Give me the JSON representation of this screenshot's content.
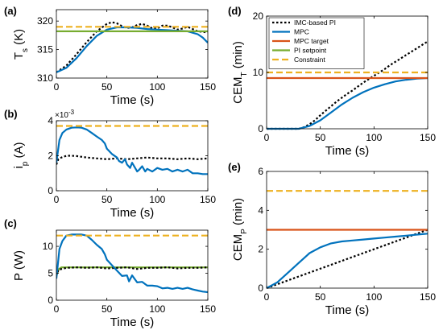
{
  "chart_data": [
    {
      "panel": "(a)",
      "type": "line",
      "xlabel": "Time (s)",
      "ylabel": "T",
      "ylabel_sub": "s",
      "ylabel_unit": " (K)",
      "xlim": [
        0,
        150
      ],
      "ylim": [
        310,
        322
      ],
      "xticks": [
        0,
        50,
        100,
        150
      ],
      "yticks": [
        310,
        315,
        320
      ],
      "series": [
        {
          "key": "imc",
          "x": [
            0,
            10,
            20,
            30,
            40,
            50,
            55,
            60,
            65,
            70,
            75,
            80,
            85,
            90,
            95,
            100,
            105,
            110,
            115,
            120,
            125,
            130,
            135,
            140,
            145,
            150
          ],
          "y": [
            311,
            312.2,
            314.2,
            316.3,
            318.2,
            319.5,
            319.8,
            319.6,
            319.1,
            318.8,
            318.9,
            319.3,
            319.5,
            319.2,
            318.7,
            318.7,
            319.2,
            319.2,
            318.9,
            318.5,
            318.7,
            319.0,
            318.6,
            318.2,
            318.1,
            318.0
          ]
        },
        {
          "key": "mpc",
          "x": [
            0,
            10,
            20,
            30,
            40,
            50,
            60,
            70,
            80,
            90,
            100,
            110,
            120,
            130,
            140,
            145,
            150
          ],
          "y": [
            311,
            311.8,
            313.5,
            315.6,
            317.4,
            318.5,
            318.9,
            318.9,
            318.8,
            318.6,
            318.5,
            318.4,
            318.3,
            318.2,
            317.7,
            317.1,
            316.2
          ]
        },
        {
          "key": "pi_setpoint",
          "x": [
            0,
            150
          ],
          "y": [
            318.2,
            318.2
          ]
        },
        {
          "key": "constraint",
          "x": [
            0,
            150
          ],
          "y": [
            319,
            319
          ]
        }
      ]
    },
    {
      "panel": "(b)",
      "type": "line",
      "xlabel": "Time (s)",
      "ylabel": "i",
      "ylabel_sub": "p",
      "ylabel_unit": " (A)",
      "exponent_label": "×10",
      "exponent_power": "-3",
      "xlim": [
        0,
        150
      ],
      "ylim": [
        0,
        4
      ],
      "xticks": [
        0,
        50,
        100,
        150
      ],
      "yticks": [
        0,
        2,
        4
      ],
      "series": [
        {
          "key": "imc",
          "x": [
            0,
            2,
            5,
            10,
            15,
            20,
            30,
            40,
            50,
            60,
            70,
            80,
            90,
            100,
            110,
            120,
            130,
            140,
            150
          ],
          "y": [
            1.5,
            1.8,
            1.9,
            2.0,
            2.0,
            1.98,
            1.9,
            1.85,
            1.8,
            1.85,
            1.8,
            1.85,
            1.9,
            1.85,
            1.85,
            1.8,
            1.85,
            1.8,
            1.85
          ]
        },
        {
          "key": "mpc",
          "x": [
            0,
            3,
            6,
            10,
            15,
            20,
            25,
            30,
            35,
            40,
            45,
            48,
            50,
            55,
            60,
            62,
            65,
            68,
            70,
            73,
            75,
            78,
            80,
            82,
            85,
            88,
            90,
            95,
            100,
            105,
            110,
            115,
            120,
            125,
            130,
            135,
            140,
            145,
            150
          ],
          "y": [
            1.6,
            2.9,
            3.3,
            3.5,
            3.6,
            3.62,
            3.6,
            3.5,
            3.3,
            3.1,
            2.9,
            2.7,
            2.4,
            2.1,
            1.9,
            1.7,
            1.6,
            1.8,
            1.5,
            1.3,
            1.6,
            1.3,
            1.1,
            1.2,
            1.4,
            1.1,
            1.25,
            1.1,
            1.3,
            1.2,
            1.25,
            1.1,
            1.2,
            1.1,
            1.2,
            1.0,
            1.0,
            0.95,
            0.95
          ]
        },
        {
          "key": "constraint",
          "x": [
            0,
            150
          ],
          "y": [
            3.7,
            3.7
          ]
        }
      ]
    },
    {
      "panel": "(c)",
      "type": "line",
      "xlabel": "Time (s)",
      "ylabel": "P (W)",
      "xlim": [
        0,
        150
      ],
      "ylim": [
        0,
        13
      ],
      "xticks": [
        0,
        50,
        100,
        150
      ],
      "yticks": [
        0,
        5,
        10
      ],
      "series": [
        {
          "key": "mpc_green",
          "x": [
            0,
            2,
            5,
            150
          ],
          "y": [
            4.5,
            5.7,
            6.1,
            6.1
          ]
        },
        {
          "key": "imc",
          "x": [
            0,
            2,
            5,
            10,
            20,
            30,
            40,
            50,
            60,
            70,
            80,
            90,
            100,
            110,
            120,
            130,
            140,
            150
          ],
          "y": [
            4.5,
            5.6,
            5.8,
            6.0,
            6.1,
            6.0,
            6.1,
            5.9,
            6.0,
            6.1,
            5.8,
            6.0,
            6.0,
            6.1,
            5.9,
            6.0,
            6.0,
            6.1
          ]
        },
        {
          "key": "mpc",
          "x": [
            0,
            3,
            6,
            10,
            15,
            20,
            25,
            30,
            35,
            40,
            45,
            48,
            50,
            55,
            60,
            65,
            70,
            72,
            75,
            80,
            85,
            90,
            95,
            100,
            105,
            110,
            115,
            120,
            125,
            130,
            135,
            140,
            145,
            150
          ],
          "y": [
            4.0,
            9.5,
            11,
            12,
            12.2,
            12.2,
            12.2,
            12.0,
            11.2,
            10.3,
            9.5,
            8.5,
            7.5,
            6.5,
            5.5,
            4.5,
            4.6,
            3.5,
            4.6,
            3.3,
            3.4,
            2.7,
            2.7,
            2.6,
            2.2,
            2.3,
            2.1,
            2.3,
            2.1,
            2.3,
            2.0,
            1.8,
            1.6,
            1.5
          ]
        },
        {
          "key": "constraint",
          "x": [
            0,
            150
          ],
          "y": [
            12,
            12
          ]
        }
      ]
    },
    {
      "panel": "(d)",
      "type": "line",
      "xlabel": "Time (s)",
      "ylabel": "CEM",
      "ylabel_sub": "T",
      "ylabel_unit": " (min)",
      "xlim": [
        0,
        150
      ],
      "ylim": [
        0,
        20
      ],
      "xticks": [
        0,
        50,
        100,
        150
      ],
      "yticks": [
        0,
        10,
        20
      ],
      "legend": {
        "position": "top-right",
        "entries": [
          {
            "key": "imc",
            "label": "IMC-based PI"
          },
          {
            "key": "mpc",
            "label": "MPC"
          },
          {
            "key": "mpc_target",
            "label": "MPC target"
          },
          {
            "key": "pi_setpoint",
            "label": "PI setpoint"
          },
          {
            "key": "constraint",
            "label": "Constraint"
          }
        ]
      },
      "series": [
        {
          "key": "imc",
          "x": [
            0,
            30,
            35,
            40,
            45,
            50,
            55,
            60,
            65,
            70,
            75,
            80,
            85,
            90,
            95,
            100,
            105,
            110,
            115,
            120,
            125,
            130,
            135,
            140,
            145,
            150
          ],
          "y": [
            0,
            0,
            0.3,
            0.8,
            1.5,
            2.4,
            3.2,
            4.0,
            4.8,
            5.5,
            6.2,
            6.8,
            7.5,
            8.2,
            8.8,
            9.4,
            10.0,
            10.6,
            11.3,
            11.9,
            12.5,
            13.1,
            13.7,
            14.3,
            14.9,
            15.5
          ]
        },
        {
          "key": "mpc",
          "x": [
            0,
            30,
            40,
            50,
            60,
            70,
            80,
            90,
            100,
            110,
            120,
            130,
            140,
            150
          ],
          "y": [
            0,
            0,
            0.5,
            1.5,
            2.9,
            4.3,
            5.5,
            6.5,
            7.3,
            7.9,
            8.4,
            8.7,
            8.9,
            9.0
          ]
        },
        {
          "key": "mpc_target",
          "x": [
            0,
            150
          ],
          "y": [
            9,
            9
          ]
        },
        {
          "key": "constraint",
          "x": [
            0,
            150
          ],
          "y": [
            10,
            10
          ]
        }
      ]
    },
    {
      "panel": "(e)",
      "type": "line",
      "xlabel": "Time (s)",
      "ylabel": "CEM",
      "ylabel_sub": "P",
      "ylabel_unit": " (min)",
      "xlim": [
        0,
        150
      ],
      "ylim": [
        0,
        6
      ],
      "xticks": [
        0,
        50,
        100,
        150
      ],
      "yticks": [
        0,
        2,
        4,
        6
      ],
      "series": [
        {
          "key": "imc",
          "x": [
            0,
            150
          ],
          "y": [
            0,
            3.0
          ]
        },
        {
          "key": "mpc",
          "x": [
            0,
            10,
            20,
            30,
            40,
            50,
            60,
            70,
            80,
            90,
            100,
            110,
            120,
            130,
            140,
            150
          ],
          "y": [
            0,
            0.3,
            0.8,
            1.3,
            1.8,
            2.1,
            2.3,
            2.4,
            2.45,
            2.5,
            2.55,
            2.6,
            2.65,
            2.7,
            2.75,
            2.8
          ]
        },
        {
          "key": "mpc_target",
          "x": [
            0,
            150
          ],
          "y": [
            3,
            3
          ]
        },
        {
          "key": "constraint",
          "x": [
            0,
            150
          ],
          "y": [
            5,
            5
          ]
        }
      ]
    }
  ],
  "styles": {
    "imc": {
      "color": "#000000",
      "dash": "2.5 2.5",
      "width": 2.2
    },
    "mpc": {
      "color": "#0072BD",
      "dash": "",
      "width": 2.2
    },
    "mpc_target": {
      "color": "#D95319",
      "dash": "",
      "width": 2.2
    },
    "pi_setpoint": {
      "color": "#77AC30",
      "dash": "",
      "width": 2.2
    },
    "constraint": {
      "color": "#EDB120",
      "dash": "8 4",
      "width": 2.2
    },
    "mpc_green": {
      "color": "#77AC30",
      "dash": "",
      "width": 2.2
    }
  }
}
